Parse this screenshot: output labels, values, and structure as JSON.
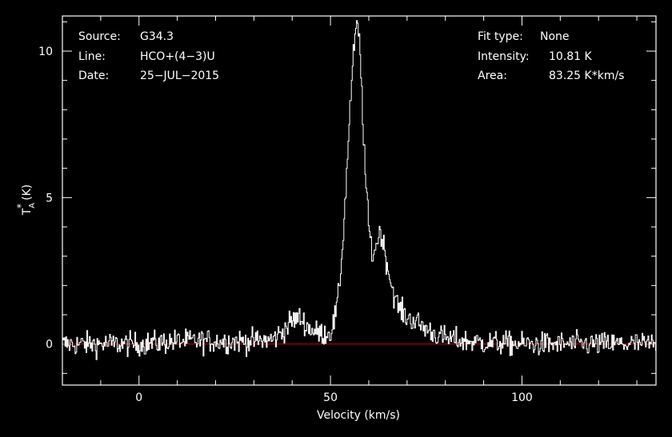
{
  "header": {
    "source_label": "Source:",
    "source_value": "G34.3",
    "line_label": "Line:",
    "line_value": "HCO+(4−3)U",
    "date_label": "Date:",
    "date_value": "25−JUL−2015",
    "fit_label": "Fit type:",
    "fit_value": "None",
    "intensity_label": "Intensity:",
    "intensity_value": "10.81 K",
    "area_label": "Area:",
    "area_value": "83.25 K*km/s"
  },
  "colors": {
    "background": "#000000",
    "axes": "#ffffff",
    "spectrum": "#ffffff",
    "baseline": "#cc0000"
  },
  "chart_data": {
    "type": "line",
    "xlabel": "Velocity (km/s)",
    "ylabel_main": "T",
    "ylabel_star": "*",
    "ylabel_sub": "A",
    "ylabel_unit": "(K)",
    "xlim": [
      -20,
      135
    ],
    "ylim": [
      -1.4,
      11.2
    ],
    "xticks": [
      0,
      50,
      100
    ],
    "yticks": [
      0,
      5,
      10
    ],
    "xtick_labels": [
      "0",
      "50",
      "100"
    ],
    "ytick_labels": [
      "0",
      "5",
      "10"
    ],
    "baseline_y": 0,
    "series": [
      {
        "x": [
          -20,
          -10,
          0,
          10,
          20,
          30,
          35,
          38,
          40,
          42,
          44,
          46,
          48,
          50,
          51,
          52,
          53,
          54,
          55,
          56,
          56.5,
          57,
          57.5,
          58,
          59,
          60,
          61,
          62,
          63,
          64,
          65,
          66,
          67,
          68,
          70,
          72,
          74,
          76,
          78,
          80,
          85,
          90,
          100,
          110,
          120,
          130,
          135
        ],
        "y": [
          0,
          0,
          0,
          0.1,
          0.1,
          0.1,
          0.15,
          0.5,
          0.8,
          0.9,
          0.6,
          0.4,
          0.35,
          0.4,
          0.8,
          1.5,
          3.0,
          5.2,
          7.8,
          9.8,
          10.6,
          10.81,
          10.5,
          9.2,
          6.0,
          4.0,
          3.0,
          3.4,
          3.9,
          3.3,
          2.6,
          2.0,
          1.5,
          1.2,
          0.9,
          0.8,
          0.6,
          0.45,
          0.3,
          0.2,
          0.1,
          0.05,
          0,
          0,
          0,
          0,
          0
        ]
      }
    ]
  }
}
